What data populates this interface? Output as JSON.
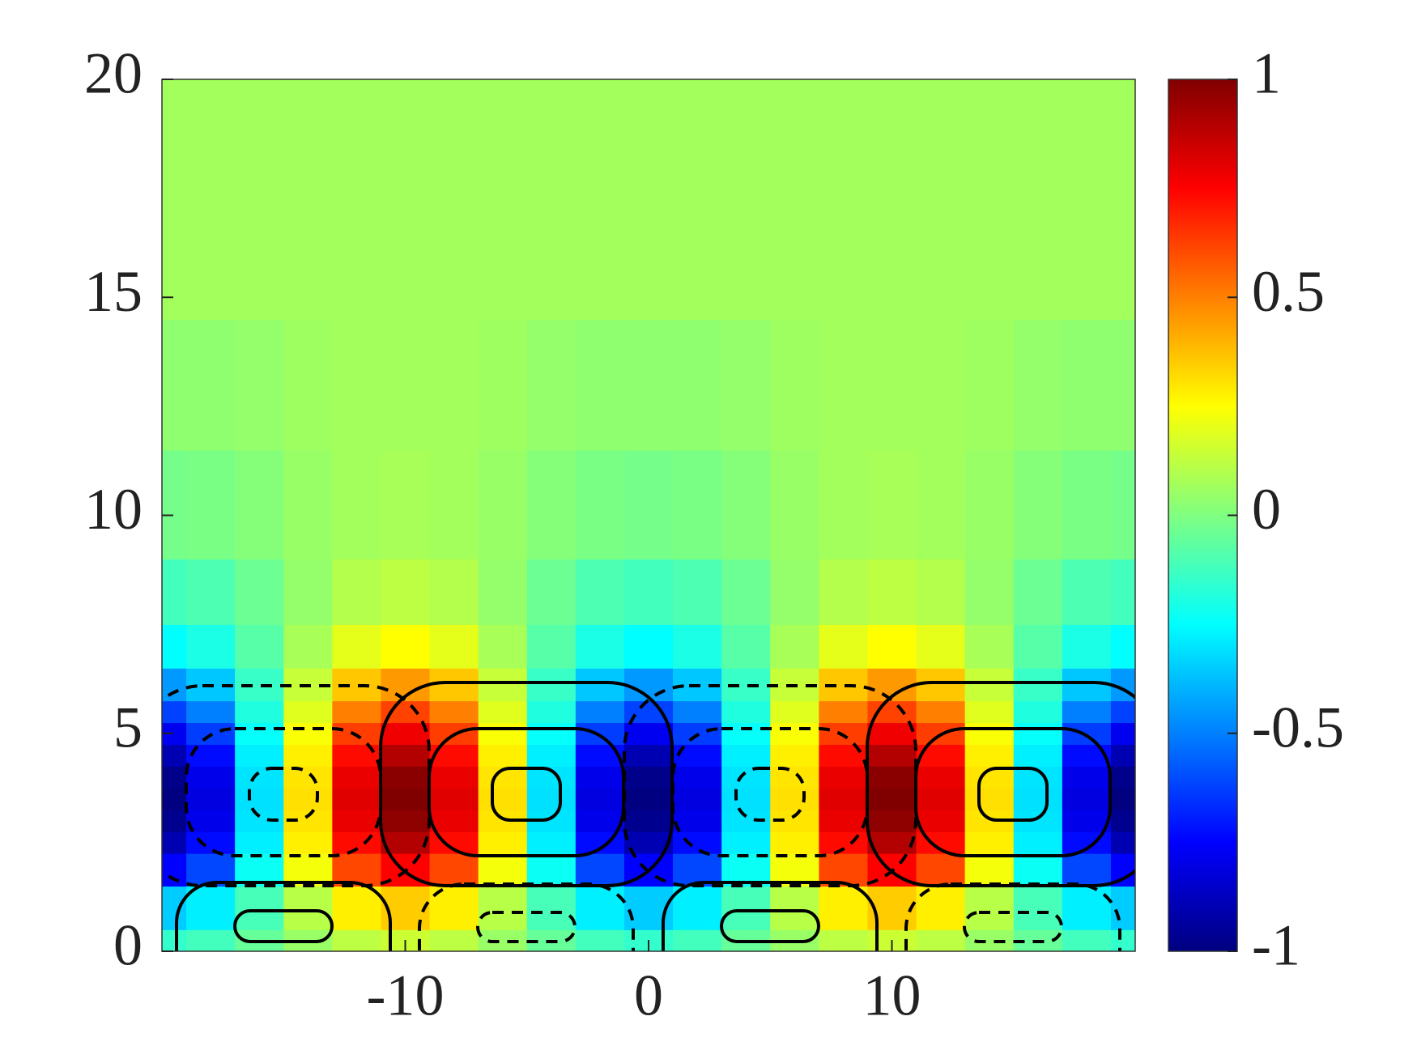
{
  "chart_data": {
    "type": "heatmap",
    "x": [
      -20,
      -18,
      -16,
      -14,
      -12,
      -10,
      -8,
      -6,
      -4,
      -2,
      0,
      2,
      4,
      6,
      8,
      10,
      12,
      14,
      16,
      18,
      20
    ],
    "y": [
      0,
      1,
      2,
      2.5,
      3,
      3.5,
      4,
      4.5,
      5,
      5.5,
      6,
      7,
      8,
      10,
      13,
      16,
      20
    ],
    "z": [
      [
        -0.15,
        -0.12,
        -0.05,
        0.05,
        0.12,
        0.15,
        0.12,
        0.05,
        -0.05,
        -0.12,
        -0.15,
        -0.12,
        -0.05,
        0.05,
        0.12,
        0.15,
        0.12,
        0.05,
        -0.05,
        -0.12,
        -0.15
      ],
      [
        -0.35,
        -0.28,
        -0.11,
        0.11,
        0.28,
        0.35,
        0.28,
        0.11,
        -0.11,
        -0.28,
        -0.35,
        -0.28,
        -0.11,
        0.11,
        0.28,
        0.35,
        0.28,
        0.11,
        -0.11,
        -0.28,
        -0.35
      ],
      [
        -0.75,
        -0.61,
        -0.23,
        0.23,
        0.61,
        0.75,
        0.61,
        0.23,
        -0.23,
        -0.61,
        -0.75,
        -0.61,
        -0.23,
        0.23,
        0.61,
        0.75,
        0.61,
        0.23,
        -0.23,
        -0.61,
        -0.75
      ],
      [
        -0.9,
        -0.73,
        -0.28,
        0.28,
        0.73,
        0.9,
        0.73,
        0.28,
        -0.28,
        -0.73,
        -0.9,
        -0.73,
        -0.28,
        0.28,
        0.73,
        0.9,
        0.73,
        0.28,
        -0.28,
        -0.73,
        -0.9
      ],
      [
        -0.97,
        -0.79,
        -0.3,
        0.3,
        0.79,
        0.97,
        0.79,
        0.3,
        -0.3,
        -0.79,
        -0.97,
        -0.79,
        -0.3,
        0.3,
        0.79,
        0.97,
        0.79,
        0.3,
        -0.3,
        -0.79,
        -0.97
      ],
      [
        -1,
        -0.81,
        -0.31,
        0.31,
        0.81,
        1,
        0.81,
        0.31,
        -0.31,
        -0.81,
        -1,
        -0.81,
        -0.31,
        0.31,
        0.81,
        1,
        0.81,
        0.31,
        -0.31,
        -0.81,
        -1
      ],
      [
        -0.98,
        -0.79,
        -0.3,
        0.3,
        0.79,
        0.98,
        0.79,
        0.3,
        -0.3,
        -0.79,
        -0.98,
        -0.79,
        -0.3,
        0.3,
        0.79,
        0.98,
        0.79,
        0.3,
        -0.3,
        -0.79,
        -0.98
      ],
      [
        -0.9,
        -0.73,
        -0.28,
        0.28,
        0.73,
        0.9,
        0.73,
        0.28,
        -0.28,
        -0.73,
        -0.9,
        -0.73,
        -0.28,
        0.28,
        0.73,
        0.9,
        0.73,
        0.28,
        -0.28,
        -0.73,
        -0.9
      ],
      [
        -0.78,
        -0.63,
        -0.24,
        0.24,
        0.63,
        0.78,
        0.63,
        0.24,
        -0.24,
        -0.63,
        -0.78,
        -0.63,
        -0.24,
        0.24,
        0.63,
        0.78,
        0.63,
        0.24,
        -0.24,
        -0.63,
        -0.78
      ],
      [
        -0.62,
        -0.5,
        -0.19,
        0.19,
        0.5,
        0.62,
        0.5,
        0.19,
        -0.19,
        -0.5,
        -0.62,
        -0.5,
        -0.19,
        0.19,
        0.5,
        0.62,
        0.5,
        0.19,
        -0.19,
        -0.5,
        -0.62
      ],
      [
        -0.45,
        -0.36,
        -0.14,
        0.14,
        0.36,
        0.45,
        0.36,
        0.14,
        -0.14,
        -0.36,
        -0.45,
        -0.36,
        -0.14,
        0.14,
        0.36,
        0.45,
        0.36,
        0.14,
        -0.14,
        -0.36,
        -0.45
      ],
      [
        -0.25,
        -0.2,
        -0.08,
        0.08,
        0.2,
        0.25,
        0.2,
        0.08,
        -0.08,
        -0.2,
        -0.25,
        -0.2,
        -0.08,
        0.08,
        0.2,
        0.25,
        0.2,
        0.08,
        -0.08,
        -0.2,
        -0.25
      ],
      [
        -0.12,
        -0.1,
        -0.04,
        0.04,
        0.1,
        0.12,
        0.1,
        0.04,
        -0.04,
        -0.1,
        -0.12,
        -0.1,
        -0.04,
        0.04,
        0.1,
        0.12,
        0.1,
        0.04,
        -0.04,
        -0.1,
        -0.12
      ],
      [
        -0.02,
        -0.01,
        0.01,
        0.05,
        0.07,
        0.08,
        0.07,
        0.05,
        0.01,
        -0.01,
        -0.02,
        -0.01,
        0.01,
        0.05,
        0.07,
        0.08,
        0.07,
        0.05,
        0.01,
        -0.01,
        -0.02
      ],
      [
        0.03,
        0.03,
        0.04,
        0.06,
        0.07,
        0.07,
        0.07,
        0.06,
        0.04,
        0.03,
        0.03,
        0.03,
        0.04,
        0.06,
        0.07,
        0.07,
        0.07,
        0.06,
        0.04,
        0.03,
        0.03
      ],
      [
        0.07,
        0.07,
        0.07,
        0.07,
        0.07,
        0.07,
        0.07,
        0.07,
        0.07,
        0.07,
        0.07,
        0.07,
        0.07,
        0.07,
        0.07,
        0.07,
        0.07,
        0.07,
        0.07,
        0.07,
        0.07
      ],
      [
        0.07,
        0.07,
        0.07,
        0.07,
        0.07,
        0.07,
        0.07,
        0.07,
        0.07,
        0.07,
        0.07,
        0.07,
        0.07,
        0.07,
        0.07,
        0.07,
        0.07,
        0.07,
        0.07,
        0.07,
        0.07
      ]
    ],
    "xlim": [
      -20,
      20
    ],
    "ylim": [
      0,
      20
    ],
    "xticks": [
      -10,
      0,
      10
    ],
    "yticks": [
      0,
      5,
      10,
      15,
      20
    ],
    "colormap": "jet",
    "zlim": [
      -1,
      1
    ],
    "zticks": [
      -1,
      -0.5,
      0,
      0.5,
      1
    ]
  }
}
